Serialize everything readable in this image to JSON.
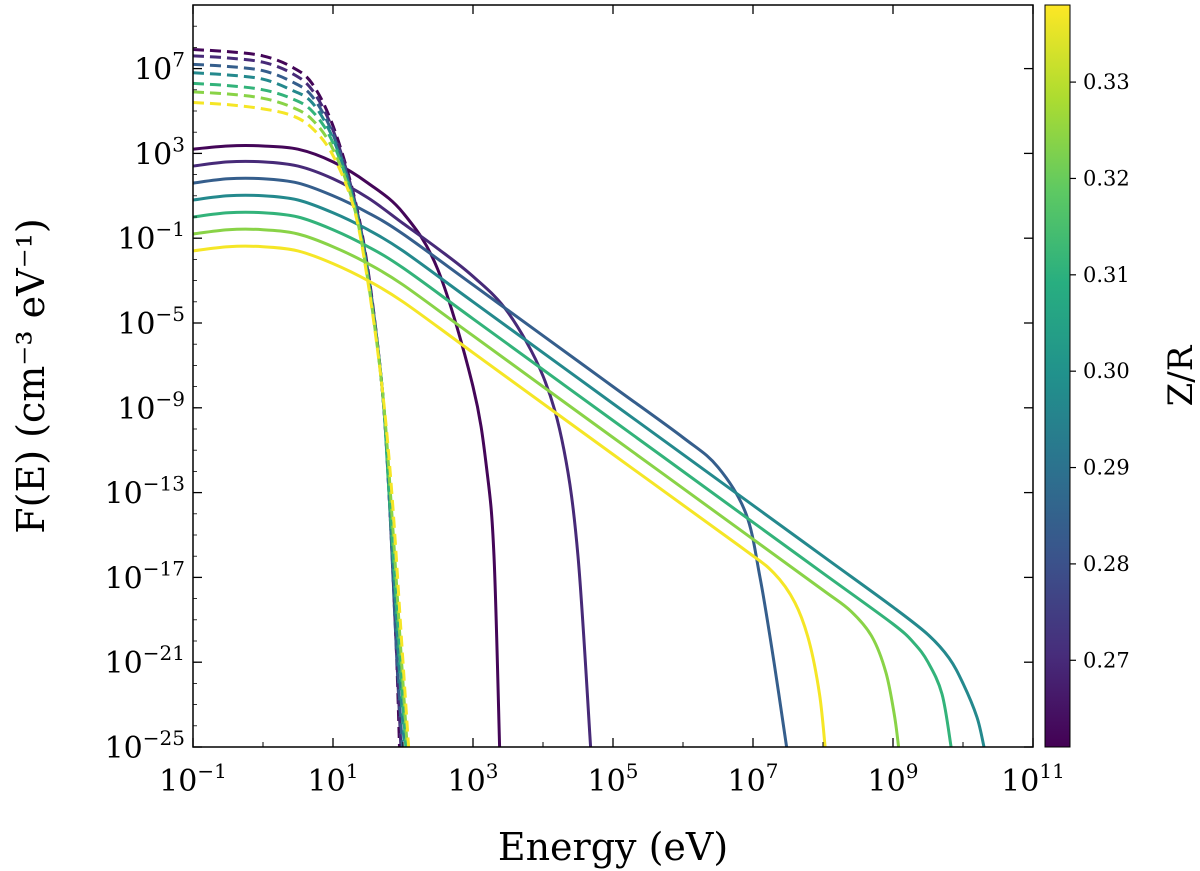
{
  "chart_data": {
    "type": "line",
    "xscale": "log",
    "yscale": "log",
    "xlim_exp": [
      -1,
      11
    ],
    "ylim_exp": [
      -25,
      10
    ],
    "xlabel": "Energy (eV)",
    "ylabel": "F(E) (cm⁻³ eV⁻¹)",
    "x_ticks": [
      {
        "base": "10",
        "exp": "−1"
      },
      {
        "base": "10",
        "exp": "1"
      },
      {
        "base": "10",
        "exp": "3"
      },
      {
        "base": "10",
        "exp": "5"
      },
      {
        "base": "10",
        "exp": "7"
      },
      {
        "base": "10",
        "exp": "9"
      },
      {
        "base": "10",
        "exp": "11"
      }
    ],
    "y_ticks": [
      {
        "base": "10",
        "exp": "7"
      },
      {
        "base": "10",
        "exp": "3"
      },
      {
        "base": "10",
        "exp": "−1"
      },
      {
        "base": "10",
        "exp": "−5"
      },
      {
        "base": "10",
        "exp": "−9"
      },
      {
        "base": "10",
        "exp": "−13"
      },
      {
        "base": "10",
        "exp": "−17"
      },
      {
        "base": "10",
        "exp": "−21"
      },
      {
        "base": "10",
        "exp": "−25"
      }
    ],
    "colorbar": {
      "label": "Z/R",
      "min": 0.261,
      "max": 0.338,
      "ticks": [
        "0.27",
        "0.28",
        "0.29",
        "0.30",
        "0.31",
        "0.32",
        "0.33"
      ],
      "colormap": "viridis"
    },
    "legend": "none",
    "series_note": "Each Z/R value has a dashed thermal component and a solid nonthermal component; points are [log10 E, log10 F].",
    "series": [
      {
        "name": "Z/R 0.262 solid",
        "z": 0.262,
        "style": "solid",
        "points": [
          [
            -1,
            3.2
          ],
          [
            -0.5,
            3.35
          ],
          [
            0,
            3.35
          ],
          [
            0.5,
            3.2
          ],
          [
            1,
            2.6
          ],
          [
            1.5,
            1.6
          ],
          [
            2,
            0.2
          ],
          [
            2.5,
            -2.5
          ],
          [
            3,
            -8
          ],
          [
            3.2,
            -12
          ],
          [
            3.3,
            -16
          ],
          [
            3.38,
            -25
          ]
        ]
      },
      {
        "name": "Z/R 0.262 dashed",
        "z": 0.262,
        "style": "dashed",
        "points": [
          [
            -1,
            7.9
          ],
          [
            -0.5,
            7.8
          ],
          [
            0,
            7.6
          ],
          [
            0.4,
            7.1
          ],
          [
            0.7,
            6.3
          ],
          [
            1,
            4.3
          ],
          [
            1.3,
            1
          ],
          [
            1.5,
            -2.5
          ],
          [
            1.7,
            -8
          ],
          [
            1.8,
            -13
          ],
          [
            1.9,
            -20
          ],
          [
            1.95,
            -25
          ]
        ]
      },
      {
        "name": "Z/R 0.270 solid",
        "z": 0.27,
        "style": "solid",
        "points": [
          [
            -1,
            2.4
          ],
          [
            -0.5,
            2.6
          ],
          [
            0,
            2.6
          ],
          [
            0.5,
            2.4
          ],
          [
            1,
            1.8
          ],
          [
            1.5,
            0.9
          ],
          [
            2,
            -0.3
          ],
          [
            2.5,
            -1.5
          ],
          [
            3,
            -2.8
          ],
          [
            3.5,
            -4.5
          ],
          [
            4,
            -7.5
          ],
          [
            4.3,
            -11
          ],
          [
            4.5,
            -16
          ],
          [
            4.68,
            -25
          ]
        ]
      },
      {
        "name": "Z/R 0.270 dashed",
        "z": 0.27,
        "style": "dashed",
        "points": [
          [
            -1,
            7.6
          ],
          [
            -0.5,
            7.5
          ],
          [
            0,
            7.3
          ],
          [
            0.4,
            6.8
          ],
          [
            0.7,
            6
          ],
          [
            1,
            4.1
          ],
          [
            1.3,
            0.9
          ],
          [
            1.5,
            -2.6
          ],
          [
            1.7,
            -8
          ],
          [
            1.8,
            -13
          ],
          [
            1.9,
            -20
          ],
          [
            1.97,
            -25
          ]
        ]
      },
      {
        "name": "Z/R 0.284 solid",
        "z": 0.284,
        "style": "solid",
        "points": [
          [
            -1,
            1.6
          ],
          [
            -0.5,
            1.8
          ],
          [
            0,
            1.8
          ],
          [
            0.5,
            1.6
          ],
          [
            1,
            1
          ],
          [
            1.5,
            0.2
          ],
          [
            2,
            -0.8
          ],
          [
            3,
            -3.2
          ],
          [
            4,
            -5.6
          ],
          [
            5,
            -8
          ],
          [
            6,
            -10.4
          ],
          [
            6.5,
            -11.8
          ],
          [
            6.9,
            -14
          ],
          [
            7.1,
            -17
          ],
          [
            7.3,
            -21
          ],
          [
            7.48,
            -25
          ]
        ]
      },
      {
        "name": "Z/R 0.284 dashed",
        "z": 0.284,
        "style": "dashed",
        "points": [
          [
            -1,
            7.2
          ],
          [
            -0.5,
            7.1
          ],
          [
            0,
            6.9
          ],
          [
            0.4,
            6.4
          ],
          [
            0.7,
            5.7
          ],
          [
            1,
            3.9
          ],
          [
            1.3,
            0.8
          ],
          [
            1.5,
            -2.7
          ],
          [
            1.7,
            -8
          ],
          [
            1.8,
            -13
          ],
          [
            1.9,
            -20
          ],
          [
            1.99,
            -25
          ]
        ]
      },
      {
        "name": "Z/R 0.297 solid",
        "z": 0.297,
        "style": "solid",
        "points": [
          [
            -1,
            0.8
          ],
          [
            -0.5,
            1
          ],
          [
            0,
            1
          ],
          [
            0.5,
            0.8
          ],
          [
            1,
            0.2
          ],
          [
            1.5,
            -0.6
          ],
          [
            2,
            -1.6
          ],
          [
            3,
            -4
          ],
          [
            5,
            -8.8
          ],
          [
            7,
            -13.6
          ],
          [
            8,
            -16
          ],
          [
            9,
            -18.4
          ],
          [
            9.5,
            -19.7
          ],
          [
            9.8,
            -20.8
          ],
          [
            10,
            -22
          ],
          [
            10.2,
            -23.6
          ],
          [
            10.3,
            -25
          ]
        ]
      },
      {
        "name": "Z/R 0.297 dashed",
        "z": 0.297,
        "style": "dashed",
        "points": [
          [
            -1,
            6.8
          ],
          [
            -0.5,
            6.7
          ],
          [
            0,
            6.5
          ],
          [
            0.4,
            6
          ],
          [
            0.7,
            5.4
          ],
          [
            1,
            3.7
          ],
          [
            1.3,
            0.7
          ],
          [
            1.5,
            -2.8
          ],
          [
            1.7,
            -8
          ],
          [
            1.8,
            -13
          ],
          [
            1.92,
            -20
          ],
          [
            2.02,
            -25
          ]
        ]
      },
      {
        "name": "Z/R 0.311 solid",
        "z": 0.311,
        "style": "solid",
        "points": [
          [
            -1,
            0
          ],
          [
            -0.5,
            0.2
          ],
          [
            0,
            0.2
          ],
          [
            0.5,
            0
          ],
          [
            1,
            -0.6
          ],
          [
            1.5,
            -1.4
          ],
          [
            2,
            -2.4
          ],
          [
            3,
            -4.8
          ],
          [
            5,
            -9.6
          ],
          [
            7,
            -14.4
          ],
          [
            8,
            -16.8
          ],
          [
            9,
            -19.2
          ],
          [
            9.3,
            -20.1
          ],
          [
            9.5,
            -21
          ],
          [
            9.7,
            -22.5
          ],
          [
            9.83,
            -25
          ]
        ]
      },
      {
        "name": "Z/R 0.311 dashed",
        "z": 0.311,
        "style": "dashed",
        "points": [
          [
            -1,
            6.3
          ],
          [
            -0.5,
            6.2
          ],
          [
            0,
            6
          ],
          [
            0.4,
            5.6
          ],
          [
            0.7,
            5
          ],
          [
            1,
            3.5
          ],
          [
            1.3,
            0.6
          ],
          [
            1.5,
            -2.9
          ],
          [
            1.7,
            -8
          ],
          [
            1.8,
            -13
          ],
          [
            1.94,
            -20
          ],
          [
            2.04,
            -25
          ]
        ]
      },
      {
        "name": "Z/R 0.324 solid",
        "z": 0.324,
        "style": "solid",
        "points": [
          [
            -1,
            -0.8
          ],
          [
            -0.5,
            -0.6
          ],
          [
            0,
            -0.6
          ],
          [
            0.5,
            -0.8
          ],
          [
            1,
            -1.4
          ],
          [
            1.5,
            -2.2
          ],
          [
            2,
            -3.2
          ],
          [
            3,
            -5.6
          ],
          [
            5,
            -10.4
          ],
          [
            7,
            -15.2
          ],
          [
            8,
            -17.6
          ],
          [
            8.4,
            -18.6
          ],
          [
            8.7,
            -19.8
          ],
          [
            8.9,
            -21.5
          ],
          [
            9.02,
            -23.5
          ],
          [
            9.08,
            -25
          ]
        ]
      },
      {
        "name": "Z/R 0.324 dashed",
        "z": 0.324,
        "style": "dashed",
        "points": [
          [
            -1,
            5.9
          ],
          [
            -0.5,
            5.8
          ],
          [
            0,
            5.6
          ],
          [
            0.4,
            5.2
          ],
          [
            0.7,
            4.6
          ],
          [
            1,
            3.2
          ],
          [
            1.3,
            0.5
          ],
          [
            1.5,
            -3
          ],
          [
            1.7,
            -8
          ],
          [
            1.82,
            -13
          ],
          [
            1.96,
            -20
          ],
          [
            2.06,
            -25
          ]
        ]
      },
      {
        "name": "Z/R 0.337 solid",
        "z": 0.337,
        "style": "solid",
        "points": [
          [
            -1,
            -1.6
          ],
          [
            -0.5,
            -1.4
          ],
          [
            0,
            -1.4
          ],
          [
            0.5,
            -1.6
          ],
          [
            1,
            -2.2
          ],
          [
            1.5,
            -3
          ],
          [
            2,
            -4
          ],
          [
            3,
            -6.4
          ],
          [
            5,
            -11.2
          ],
          [
            6.8,
            -15.5
          ],
          [
            7.3,
            -16.8
          ],
          [
            7.6,
            -18.2
          ],
          [
            7.8,
            -20
          ],
          [
            7.95,
            -22.5
          ],
          [
            8.03,
            -25
          ]
        ]
      },
      {
        "name": "Z/R 0.337 dashed",
        "z": 0.337,
        "style": "dashed",
        "points": [
          [
            -1,
            5.4
          ],
          [
            -0.5,
            5.3
          ],
          [
            0,
            5.1
          ],
          [
            0.4,
            4.8
          ],
          [
            0.7,
            4.2
          ],
          [
            1,
            2.9
          ],
          [
            1.3,
            0.4
          ],
          [
            1.5,
            -3.1
          ],
          [
            1.7,
            -8
          ],
          [
            1.84,
            -13
          ],
          [
            1.98,
            -20
          ],
          [
            2.08,
            -25
          ]
        ]
      }
    ]
  }
}
